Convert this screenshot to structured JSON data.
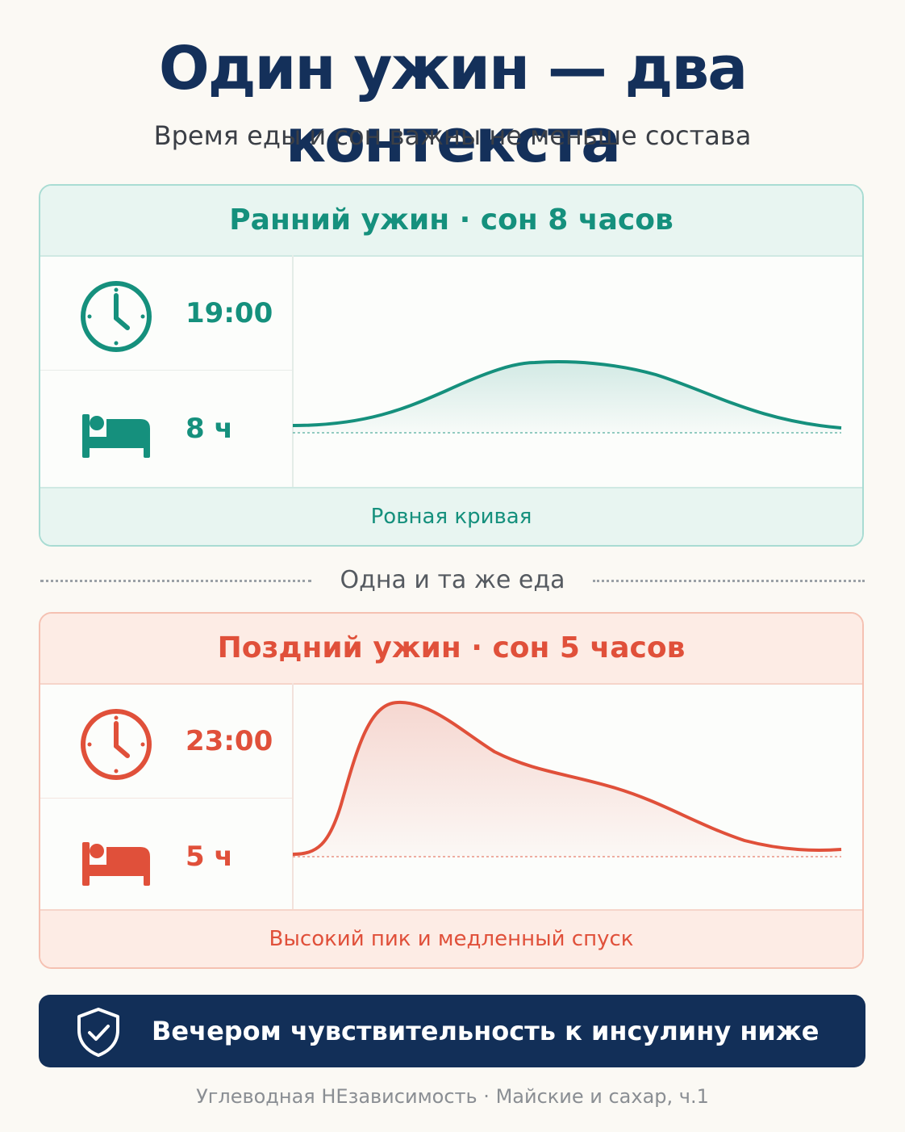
{
  "header": {
    "title": "Один ужин — два контекста",
    "subtitle": "Время еды и сон важны не меньше состава"
  },
  "cards": {
    "early": {
      "title": "Ранний ужин · сон 8 часов",
      "dinner_time": "19:00",
      "sleep": "8 ч",
      "caption": "Ровная кривая",
      "color": "#15907d",
      "curve": "flat, gentle rise and return"
    },
    "late": {
      "title": "Поздний ужин · сон 5 часов",
      "dinner_time": "23:00",
      "sleep": "5 ч",
      "caption": "Высокий пик и медленный спуск",
      "color": "#e0503a",
      "curve": "sharp high peak, slow descent"
    }
  },
  "separator": "Одна и та же еда",
  "banner": {
    "text": "Вечером чувствительность к инсулину ниже",
    "icon": "shield-check-icon"
  },
  "footer": "Углеводная НЕзависимость · Майские и сахар, ч.1"
}
